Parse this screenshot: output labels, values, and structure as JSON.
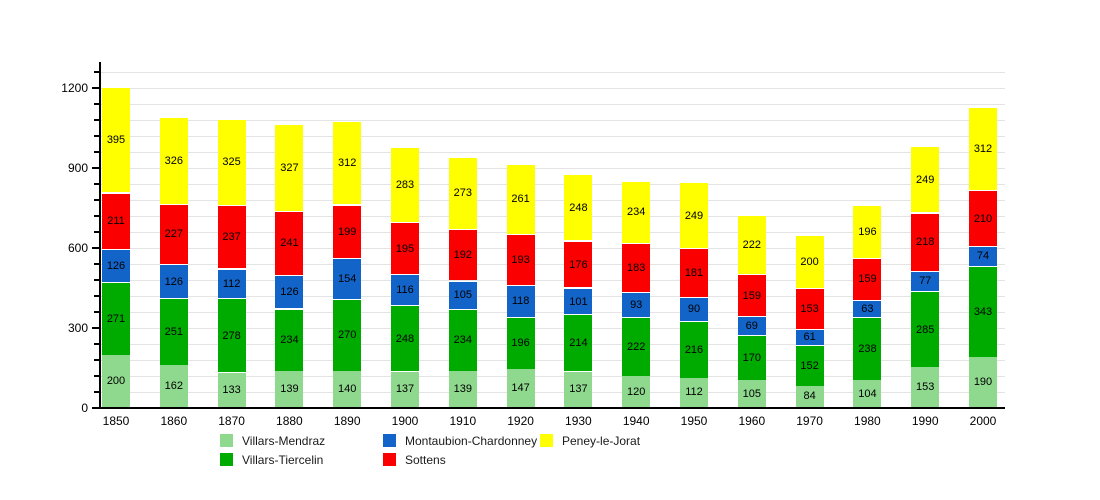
{
  "chart_data": {
    "type": "bar",
    "stacked": true,
    "title": "",
    "xlabel": "",
    "ylabel": "",
    "categories": [
      "1850",
      "1860",
      "1870",
      "1880",
      "1890",
      "1900",
      "1910",
      "1920",
      "1930",
      "1940",
      "1950",
      "1960",
      "1970",
      "1980",
      "1990",
      "2000"
    ],
    "series": [
      {
        "name": "Villars-Mendraz",
        "color": "#8fd98f",
        "values": [
          200,
          162,
          133,
          139,
          140,
          137,
          139,
          147,
          137,
          120,
          112,
          105,
          84,
          104,
          153,
          190
        ]
      },
      {
        "name": "Villars-Tiercelin",
        "color": "#00ab00",
        "values": [
          271,
          251,
          278,
          234,
          270,
          248,
          234,
          196,
          214,
          222,
          216,
          170,
          152,
          238,
          285,
          343
        ]
      },
      {
        "name": "Montaubion-Chardonney",
        "color": "#1364c8",
        "values": [
          126,
          126,
          112,
          126,
          154,
          116,
          105,
          118,
          101,
          93,
          90,
          69,
          61,
          63,
          77,
          74
        ]
      },
      {
        "name": "Sottens",
        "color": "#fa0000",
        "values": [
          211,
          227,
          237,
          241,
          199,
          195,
          192,
          193,
          176,
          183,
          181,
          159,
          153,
          159,
          218,
          210
        ]
      },
      {
        "name": "Peney-le-Jorat",
        "color": "#ffff00",
        "values": [
          395,
          326,
          325,
          327,
          312,
          283,
          273,
          261,
          248,
          234,
          249,
          222,
          200,
          196,
          249,
          312
        ]
      }
    ],
    "ylim": [
      0,
      1290
    ],
    "yticks": [
      0,
      300,
      600,
      900,
      1200
    ],
    "minor_tick_step": 60,
    "grid": true,
    "legend_position": "bottom",
    "colors": {
      "axis": "#000000",
      "gridline": "#e4e4e4",
      "value_label": "#000000",
      "background": "#ffffff"
    }
  }
}
